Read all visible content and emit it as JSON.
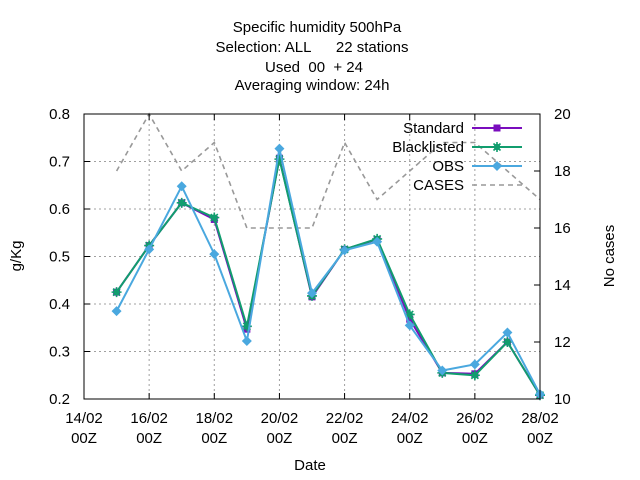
{
  "chart_data": {
    "type": "line",
    "title_lines": [
      "Specific humidity 500hPa",
      "Selection: ALL      22 stations",
      "Used  00  + 24",
      "Averaging window: 24h"
    ],
    "xlabel": "Date",
    "ylabel": "g/Kg",
    "y2label": "No cases",
    "x_ticks": [
      {
        "day": 14,
        "line1": "14/02",
        "line2": "00Z"
      },
      {
        "day": 16,
        "line1": "16/02",
        "line2": "00Z"
      },
      {
        "day": 18,
        "line1": "18/02",
        "line2": "00Z"
      },
      {
        "day": 20,
        "line1": "20/02",
        "line2": "00Z"
      },
      {
        "day": 22,
        "line1": "22/02",
        "line2": "00Z"
      },
      {
        "day": 24,
        "line1": "24/02",
        "line2": "00Z"
      },
      {
        "day": 26,
        "line1": "26/02",
        "line2": "00Z"
      },
      {
        "day": 28,
        "line1": "28/02",
        "line2": "00Z"
      }
    ],
    "xlim_days": [
      14,
      28
    ],
    "ylim": [
      0.2,
      0.8
    ],
    "y_ticks": [
      "0.2",
      "0.3",
      "0.4",
      "0.5",
      "0.6",
      "0.7",
      "0.8"
    ],
    "y2lim": [
      10,
      20
    ],
    "y2_ticks": [
      "10",
      "12",
      "14",
      "16",
      "18",
      "20"
    ],
    "grid": true,
    "legend_position": "top-right",
    "x_days": [
      15,
      16,
      17,
      18,
      19,
      20,
      21,
      22,
      23,
      24,
      25,
      26,
      27,
      28
    ],
    "series": [
      {
        "name": "Standard",
        "axis": "y",
        "color": "#7a0dbd",
        "style": "solid",
        "marker": "square",
        "values": [
          0.425,
          0.523,
          0.613,
          0.578,
          0.347,
          0.707,
          0.415,
          0.515,
          0.536,
          0.368,
          0.255,
          0.253,
          0.32,
          0.208
        ]
      },
      {
        "name": "Blacklisted",
        "axis": "y",
        "color": "#119d6e",
        "style": "solid",
        "marker": "star",
        "values": [
          0.425,
          0.523,
          0.613,
          0.582,
          0.353,
          0.705,
          0.417,
          0.515,
          0.537,
          0.378,
          0.255,
          0.25,
          0.32,
          0.208
        ]
      },
      {
        "name": "OBS",
        "axis": "y",
        "color": "#4aa8df",
        "style": "solid",
        "marker": "diamond",
        "values": [
          0.385,
          0.515,
          0.648,
          0.505,
          0.322,
          0.727,
          0.423,
          0.513,
          0.531,
          0.355,
          0.26,
          0.273,
          0.34,
          0.21
        ]
      },
      {
        "name": "CASES",
        "axis": "y2",
        "color": "#999999",
        "style": "dashed",
        "marker": "none",
        "values": [
          18,
          20,
          18,
          19,
          16,
          16,
          16,
          19,
          17,
          18,
          19,
          19,
          18,
          17
        ]
      }
    ]
  }
}
